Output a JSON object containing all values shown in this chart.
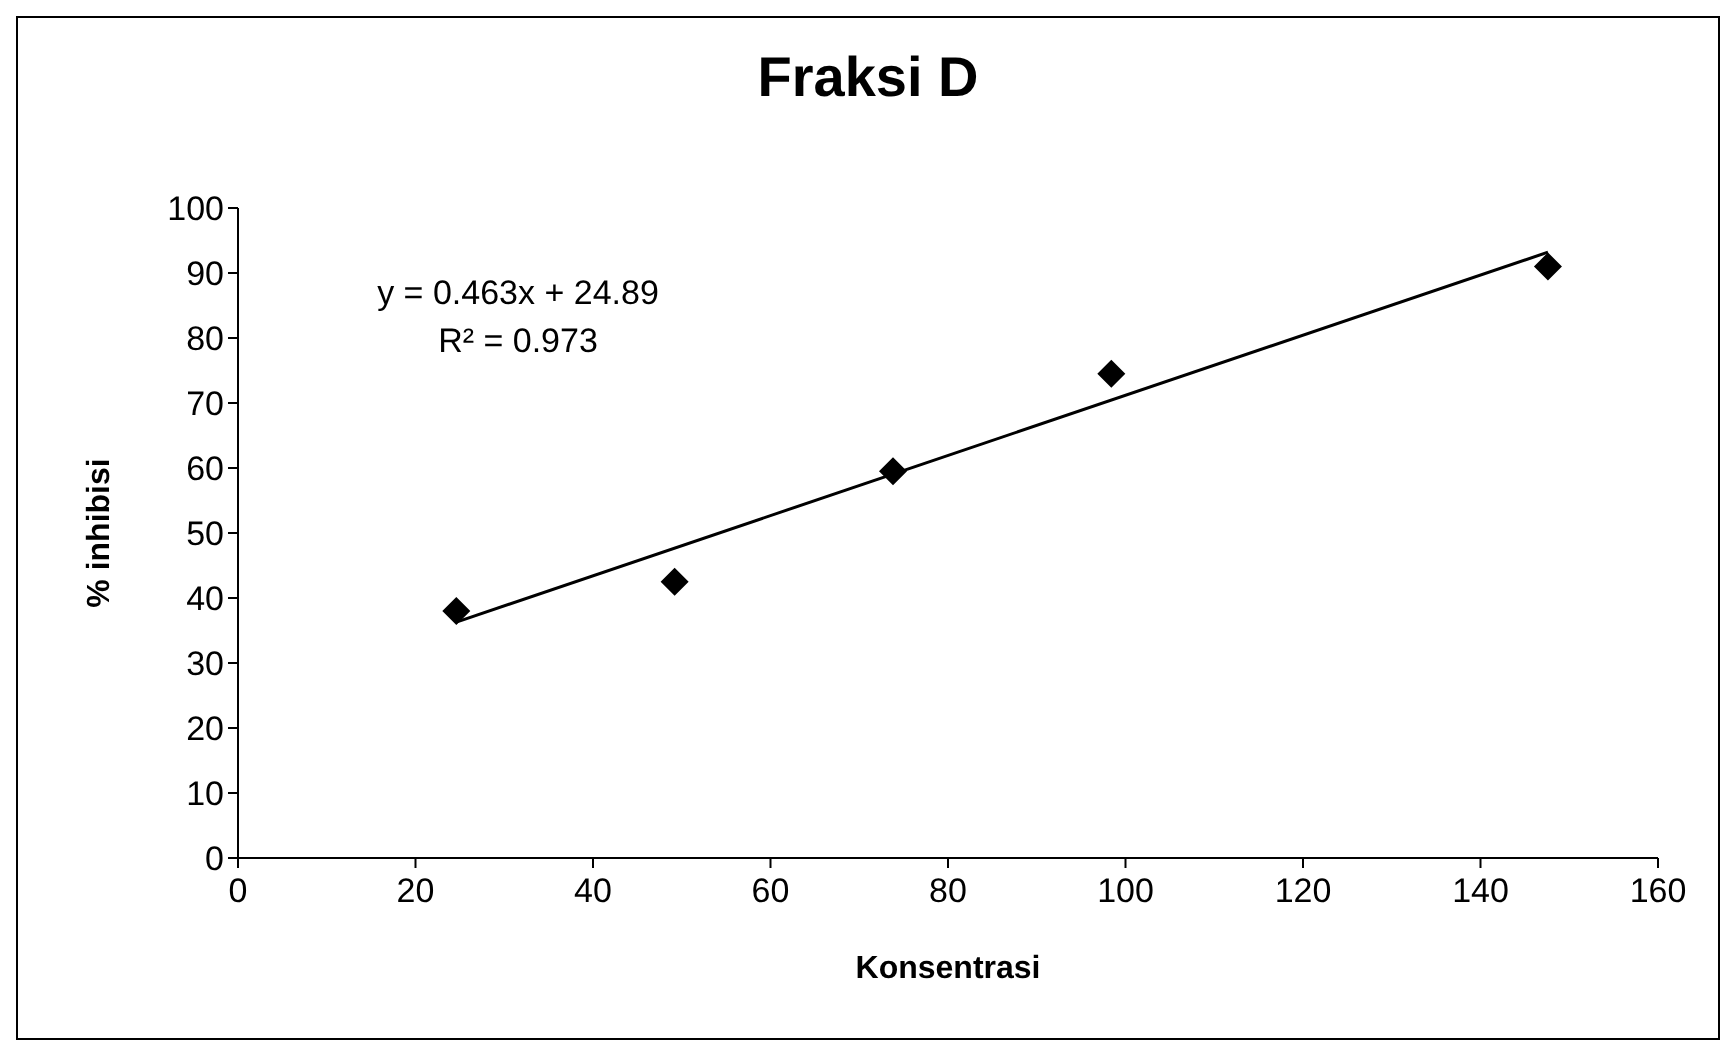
{
  "chart_data": {
    "type": "scatter",
    "title": "Fraksi D",
    "xlabel": "Konsentrasi",
    "ylabel": "% inhibisi",
    "xlim": [
      0,
      160
    ],
    "xticks": [
      0,
      20,
      40,
      60,
      80,
      100,
      120,
      140,
      160
    ],
    "ylim": [
      0,
      100
    ],
    "yticks": [
      0,
      10,
      20,
      30,
      40,
      50,
      60,
      70,
      80,
      90,
      100
    ],
    "grid": false,
    "legend": false,
    "marker": "diamond",
    "series": [
      {
        "color": "#000000",
        "x": [
          24.6,
          49.2,
          73.8,
          98.4,
          147.6
        ],
        "values": [
          38,
          42.5,
          59.5,
          74.5,
          91
        ]
      },
      {
        "type": "line",
        "color": "#000000",
        "marker": "none",
        "line_style": "solid",
        "x": [
          24.6,
          147.6
        ],
        "values": [
          36.3,
          93.2
        ]
      }
    ],
    "annotations": [
      "y = 0.463x + 24.89",
      "R² = 0.973"
    ]
  }
}
